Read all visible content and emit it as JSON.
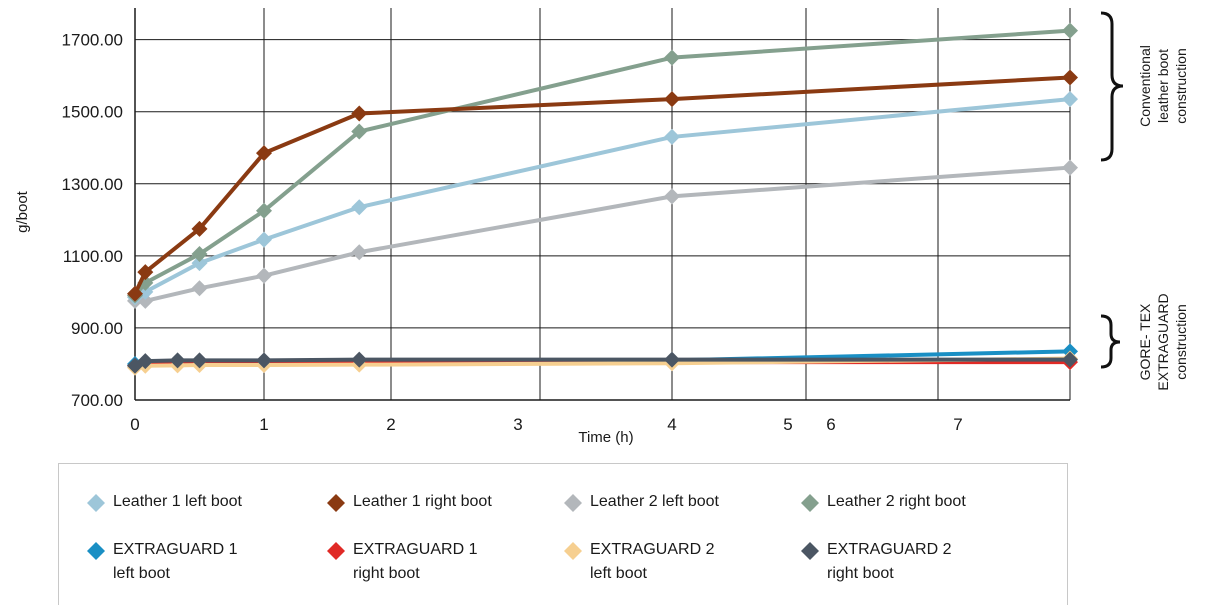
{
  "chart_data": {
    "type": "line",
    "xlabel": "Time (h)",
    "ylabel": "g/boot",
    "ylim": [
      700,
      1800
    ],
    "yticks": [
      "700.00",
      "900.00",
      "1100.00",
      "1300.00",
      "1500.00",
      "1700.00"
    ],
    "xticks": [
      "0",
      "1",
      "2",
      "3",
      "4",
      "5",
      "6",
      "7"
    ],
    "grid": true,
    "legend_position": "bottom",
    "series": [
      {
        "name": "Leather 1 left boot",
        "color": "#9dc6d9",
        "x": [
          0,
          0.08,
          0.5,
          1,
          1.75,
          4,
          7.5
        ],
        "y": [
          985,
          1000,
          1080,
          1145,
          1235,
          1430,
          1535
        ]
      },
      {
        "name": "Leather 1 right boot",
        "color": "#8a3a12",
        "x": [
          0,
          0.08,
          0.5,
          1,
          1.75,
          4,
          7.5
        ],
        "y": [
          995,
          1055,
          1175,
          1385,
          1495,
          1535,
          1595
        ]
      },
      {
        "name": "Leather 2 left boot",
        "color": "#b3b7bb",
        "x": [
          0,
          0.08,
          0.5,
          1,
          1.75,
          4,
          7.5
        ],
        "y": [
          975,
          975,
          1010,
          1045,
          1110,
          1265,
          1345
        ]
      },
      {
        "name": "Leather 2 right boot",
        "color": "#84a08e",
        "x": [
          0,
          0.08,
          0.5,
          1,
          1.75,
          4,
          7.5
        ],
        "y": [
          990,
          1025,
          1105,
          1225,
          1445,
          1650,
          1725
        ]
      },
      {
        "name": "EXTRAGUARD 1 left boot",
        "color": "#1a8fc4",
        "x": [
          0,
          0.08,
          0.33,
          0.5,
          1,
          1.75,
          4,
          7.5
        ],
        "y": [
          800,
          805,
          806,
          806,
          807,
          808,
          810,
          835
        ]
      },
      {
        "name": "EXTRAGUARD 1 right boot",
        "color": "#e02a26",
        "x": [
          0,
          0.08,
          0.33,
          0.5,
          1,
          1.75,
          4,
          7.5
        ],
        "y": [
          795,
          800,
          800,
          801,
          802,
          803,
          805,
          805
        ]
      },
      {
        "name": "EXTRAGUARD 2 left boot",
        "color": "#f6cf90",
        "x": [
          0,
          0.08,
          0.33,
          0.5,
          1,
          1.75,
          4,
          7.5
        ],
        "y": [
          790,
          795,
          796,
          797,
          797,
          798,
          802,
          815
        ]
      },
      {
        "name": "EXTRAGUARD 2 right boot",
        "color": "#4b5663",
        "x": [
          0,
          0.08,
          0.33,
          0.5,
          1,
          1.75,
          4,
          7.5
        ],
        "y": [
          795,
          808,
          810,
          810,
          810,
          812,
          812,
          812
        ]
      }
    ]
  },
  "annotations": {
    "conventional": [
      "Conventional",
      "leather boot",
      "construction"
    ],
    "goretex": [
      "GORE- TEX",
      "EXTRAGUARD",
      "construction"
    ]
  },
  "legend": {
    "items": [
      {
        "lines": [
          "Leather 1 left boot"
        ],
        "color": "#9dc6d9"
      },
      {
        "lines": [
          "Leather 1 right boot"
        ],
        "color": "#8a3a12"
      },
      {
        "lines": [
          "Leather 2 left boot"
        ],
        "color": "#b3b7bb"
      },
      {
        "lines": [
          "Leather 2 right boot"
        ],
        "color": "#84a08e"
      },
      {
        "lines": [
          "EXTRAGUARD 1",
          "left boot"
        ],
        "color": "#1a8fc4"
      },
      {
        "lines": [
          "EXTRAGUARD 1",
          "right boot"
        ],
        "color": "#e02a26"
      },
      {
        "lines": [
          "EXTRAGUARD 2",
          "left boot"
        ],
        "color": "#f6cf90"
      },
      {
        "lines": [
          "EXTRAGUARD 2",
          "right boot"
        ],
        "color": "#4b5663"
      }
    ]
  }
}
